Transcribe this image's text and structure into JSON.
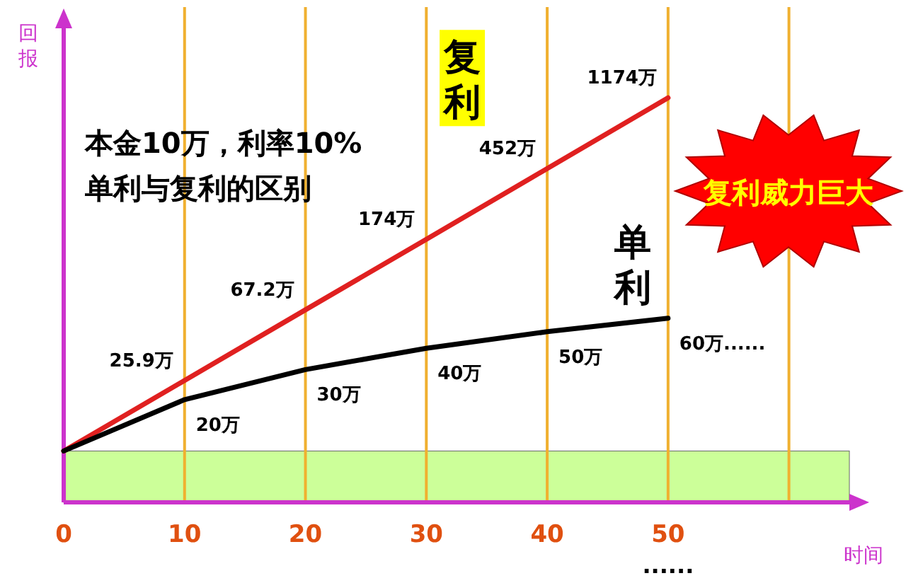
{
  "chart_data": {
    "type": "line",
    "title": "本金10万，利率10%",
    "subtitle": "单利与复利的区别",
    "xlabel": "时间",
    "ylabel": "回报",
    "x": [
      0,
      10,
      20,
      30,
      40,
      50
    ],
    "xlim": [
      0,
      65
    ],
    "xticks": [
      0,
      10,
      20,
      30,
      40,
      50,
      {
        "value": 60,
        "label": null
      }
    ],
    "ylim": [
      5,
      3000
    ],
    "log": true,
    "grid": "x",
    "tick_labels": "x",
    "bands": [
      {
        "axis": "y",
        "from": 5,
        "to": 10,
        "color": "#ccff99"
      }
    ],
    "series": [
      {
        "name": "复利",
        "color": "#e02020",
        "values": [
          10,
          25.9,
          67.2,
          174,
          452,
          1174
        ],
        "value_labels": [
          null,
          "25.9万",
          "67.2万",
          "174万",
          "452万",
          "1174万"
        ]
      },
      {
        "name": "单利",
        "color": "#000000",
        "values": [
          10,
          20,
          30,
          40,
          50,
          60
        ],
        "value_labels": [
          null,
          "20万",
          "30万",
          "40万",
          "50万",
          "60万......"
        ]
      }
    ],
    "annotations": [
      "复利威力巨大",
      "......"
    ]
  }
}
